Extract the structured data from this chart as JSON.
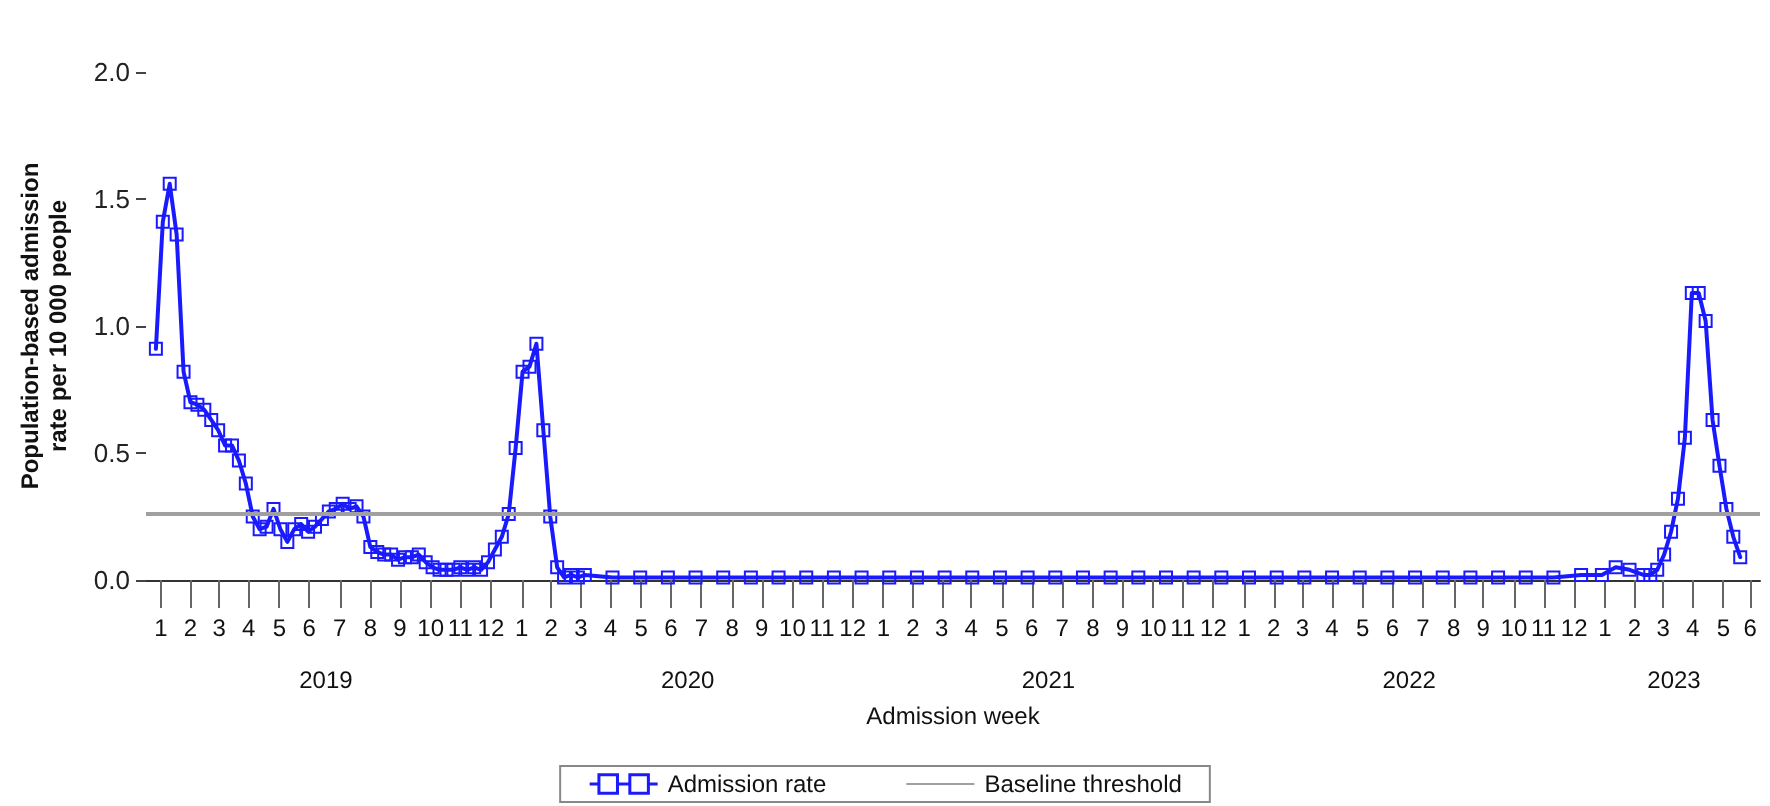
{
  "chart_data": {
    "type": "line",
    "xlabel": "Admission week",
    "ylabel": "Population-based admission rate per 10 000 people",
    "x": [
      "2019-01-11",
      "2019-01-18",
      "2019-01-25",
      "2019-02-01",
      "2019-02-08",
      "2019-02-15",
      "2019-02-22",
      "2019-03-01",
      "2019-03-08",
      "2019-03-15",
      "2019-03-22",
      "2019-03-29",
      "2019-04-05",
      "2019-04-12",
      "2019-04-19",
      "2019-04-26",
      "2019-05-03",
      "2019-05-10",
      "2019-05-17",
      "2019-05-24",
      "2019-05-31",
      "2019-06-07",
      "2019-06-14",
      "2019-06-21",
      "2019-06-28",
      "2019-07-05",
      "2019-07-12",
      "2019-07-19",
      "2019-07-26",
      "2019-08-02",
      "2019-08-09",
      "2019-08-16",
      "2019-08-23",
      "2019-08-30",
      "2019-09-06",
      "2019-09-13",
      "2019-09-20",
      "2019-09-27",
      "2019-10-04",
      "2019-10-11",
      "2019-10-18",
      "2019-10-25",
      "2019-11-01",
      "2019-11-08",
      "2019-11-15",
      "2019-11-22",
      "2019-11-29",
      "2019-12-06",
      "2019-12-13",
      "2019-12-20",
      "2019-12-27",
      "2020-01-03",
      "2020-01-10",
      "2020-01-17",
      "2020-01-24",
      "2020-01-31",
      "2020-02-07",
      "2020-02-14",
      "2020-02-21",
      "2020-02-28",
      "2020-03-06",
      "2020-03-13",
      "2020-03-20",
      "2020-04-17",
      "2020-05-15",
      "2020-06-12",
      "2020-07-10",
      "2020-08-07",
      "2020-09-04",
      "2020-10-02",
      "2020-10-30",
      "2020-11-27",
      "2020-12-25",
      "2021-01-22",
      "2021-02-19",
      "2021-03-19",
      "2021-04-16",
      "2021-05-14",
      "2021-06-11",
      "2021-07-09",
      "2021-08-06",
      "2021-09-03",
      "2021-10-01",
      "2021-10-29",
      "2021-11-26",
      "2021-12-24",
      "2022-01-21",
      "2022-02-18",
      "2022-03-18",
      "2022-04-15",
      "2022-05-13",
      "2022-06-10",
      "2022-07-08",
      "2022-08-05",
      "2022-09-02",
      "2022-09-30",
      "2022-10-28",
      "2022-11-25",
      "2022-12-23",
      "2023-01-13",
      "2023-01-27",
      "2023-02-10",
      "2023-02-24",
      "2023-03-03",
      "2023-03-10",
      "2023-03-17",
      "2023-03-24",
      "2023-03-31",
      "2023-04-07",
      "2023-04-14",
      "2023-04-21",
      "2023-04-28",
      "2023-05-05",
      "2023-05-12",
      "2023-05-19",
      "2023-05-26",
      "2023-06-02"
    ],
    "series": [
      {
        "name": "Admission rate",
        "color": "#1a1aff",
        "values": [
          0.91,
          1.41,
          1.56,
          1.36,
          0.82,
          0.7,
          0.69,
          0.67,
          0.63,
          0.59,
          0.53,
          0.53,
          0.47,
          0.38,
          0.25,
          0.2,
          0.21,
          0.28,
          0.2,
          0.15,
          0.2,
          0.22,
          0.19,
          0.21,
          0.24,
          0.27,
          0.28,
          0.3,
          0.28,
          0.29,
          0.25,
          0.13,
          0.11,
          0.1,
          0.1,
          0.08,
          0.09,
          0.09,
          0.1,
          0.07,
          0.05,
          0.04,
          0.04,
          0.04,
          0.05,
          0.04,
          0.05,
          0.04,
          0.07,
          0.12,
          0.17,
          0.26,
          0.52,
          0.82,
          0.84,
          0.93,
          0.59,
          0.25,
          0.05,
          0.01,
          0.02,
          0.01,
          0.02,
          0.01,
          0.01,
          0.01,
          0.01,
          0.01,
          0.01,
          0.01,
          0.01,
          0.01,
          0.01,
          0.01,
          0.01,
          0.01,
          0.01,
          0.01,
          0.01,
          0.01,
          0.01,
          0.01,
          0.01,
          0.01,
          0.01,
          0.01,
          0.01,
          0.01,
          0.01,
          0.01,
          0.01,
          0.01,
          0.01,
          0.01,
          0.01,
          0.01,
          0.01,
          0.01,
          0.02,
          0.02,
          0.05,
          0.04,
          0.02,
          0.02,
          0.04,
          0.1,
          0.19,
          0.32,
          0.56,
          1.13,
          1.13,
          1.02,
          0.63,
          0.45,
          0.28,
          0.17,
          0.09
        ]
      }
    ],
    "ref_lines": [
      {
        "axis": "y",
        "value": 0.26,
        "label": "Baseline threshold",
        "color": "#a0a0a0"
      }
    ],
    "xlim": [
      "2019-01-01",
      "2023-06-22"
    ],
    "xticks": [
      {
        "value": "2019-01-16",
        "label": "1"
      },
      {
        "value": "2019-02-15",
        "label": "2"
      },
      {
        "value": "2019-03-16",
        "label": "3"
      },
      {
        "value": "2019-04-15",
        "label": "4"
      },
      {
        "value": "2019-05-16",
        "label": "5"
      },
      {
        "value": "2019-06-15",
        "label": "6"
      },
      {
        "value": "2019-07-16",
        "label": "7"
      },
      {
        "value": "2019-08-16",
        "label": "8"
      },
      {
        "value": "2019-09-15",
        "label": "9"
      },
      {
        "value": "2019-10-16",
        "label": "10"
      },
      {
        "value": "2019-11-15",
        "label": "11"
      },
      {
        "value": "2019-12-16",
        "label": "12"
      },
      {
        "value": "2020-01-16",
        "label": "1"
      },
      {
        "value": "2020-02-15",
        "label": "2"
      },
      {
        "value": "2020-03-16",
        "label": "3"
      },
      {
        "value": "2020-04-15",
        "label": "4"
      },
      {
        "value": "2020-05-16",
        "label": "5"
      },
      {
        "value": "2020-06-15",
        "label": "6"
      },
      {
        "value": "2020-07-16",
        "label": "7"
      },
      {
        "value": "2020-08-16",
        "label": "8"
      },
      {
        "value": "2020-09-15",
        "label": "9"
      },
      {
        "value": "2020-10-16",
        "label": "10"
      },
      {
        "value": "2020-11-15",
        "label": "11"
      },
      {
        "value": "2020-12-16",
        "label": "12"
      },
      {
        "value": "2021-01-16",
        "label": "1"
      },
      {
        "value": "2021-02-15",
        "label": "2"
      },
      {
        "value": "2021-03-16",
        "label": "3"
      },
      {
        "value": "2021-04-15",
        "label": "4"
      },
      {
        "value": "2021-05-16",
        "label": "5"
      },
      {
        "value": "2021-06-15",
        "label": "6"
      },
      {
        "value": "2021-07-16",
        "label": "7"
      },
      {
        "value": "2021-08-16",
        "label": "8"
      },
      {
        "value": "2021-09-15",
        "label": "9"
      },
      {
        "value": "2021-10-16",
        "label": "10"
      },
      {
        "value": "2021-11-15",
        "label": "11"
      },
      {
        "value": "2021-12-16",
        "label": "12"
      },
      {
        "value": "2022-01-16",
        "label": "1"
      },
      {
        "value": "2022-02-15",
        "label": "2"
      },
      {
        "value": "2022-03-16",
        "label": "3"
      },
      {
        "value": "2022-04-15",
        "label": "4"
      },
      {
        "value": "2022-05-16",
        "label": "5"
      },
      {
        "value": "2022-06-15",
        "label": "6"
      },
      {
        "value": "2022-07-16",
        "label": "7"
      },
      {
        "value": "2022-08-16",
        "label": "8"
      },
      {
        "value": "2022-09-15",
        "label": "9"
      },
      {
        "value": "2022-10-16",
        "label": "10"
      },
      {
        "value": "2022-11-15",
        "label": "11"
      },
      {
        "value": "2022-12-16",
        "label": "12"
      },
      {
        "value": "2023-01-16",
        "label": "1"
      },
      {
        "value": "2023-02-15",
        "label": "2"
      },
      {
        "value": "2023-03-16",
        "label": "3"
      },
      {
        "value": "2023-04-15",
        "label": "4"
      },
      {
        "value": "2023-05-16",
        "label": "5"
      },
      {
        "value": "2023-06-12",
        "label": "6"
      }
    ],
    "x2lim": [
      "2019-01-01",
      "2023-06-22"
    ],
    "x2ticks": [
      {
        "value": "2019-07-02",
        "label": "2019"
      },
      {
        "value": "2020-07-02",
        "label": "2020"
      },
      {
        "value": "2021-07-02",
        "label": "2021"
      },
      {
        "value": "2022-07-02",
        "label": "2022"
      },
      {
        "value": "2023-03-27",
        "label": "2023"
      }
    ],
    "ylim": [
      0,
      2
    ],
    "yticks": [
      {
        "value": 0,
        "label": "0.0"
      },
      {
        "value": 0.5,
        "label": "0.5"
      },
      {
        "value": 1,
        "label": "1.0"
      },
      {
        "value": 1.5,
        "label": "1.5"
      },
      {
        "value": 2,
        "label": "2.0"
      }
    ],
    "grid": false,
    "legend": "bottom",
    "marker": "square",
    "line_style": "solid"
  }
}
